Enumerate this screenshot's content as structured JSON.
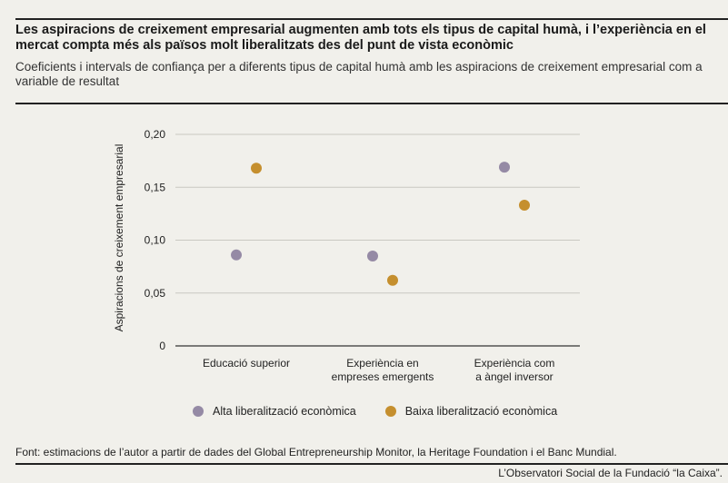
{
  "header": {
    "title": "Les aspiracions de creixement empresarial augmenten amb tots els tipus de capital humà, i l’experiència en el mercat compta més als països molt liberalitzats des del punt de vista econòmic",
    "subtitle": "Coeficients i intervals de confiança per a diferents tipus de capital humà amb les aspiracions de creixement empresarial com a variable de resultat"
  },
  "footer": {
    "source": "Font: estimacions de l’autor a partir de dades del Global Entrepreneurship Monitor, la Heritage Foundation i el Banc Mundial.",
    "credit": "L’Observatori Social de la Fundació “la Caixa”."
  },
  "chart_data": {
    "type": "scatter",
    "title": "",
    "xlabel": "",
    "ylabel": "Aspiracions de creixement empresarial",
    "ylim": [
      0,
      0.2
    ],
    "yticks": [
      0,
      0.05,
      0.1,
      0.15,
      0.2
    ],
    "ytick_labels": [
      "0",
      "0,05",
      "0,10",
      "0,15",
      "0,20"
    ],
    "grid": true,
    "legend_position": "bottom",
    "categories": [
      [
        "Educació superior"
      ],
      [
        "Experiència en",
        "empreses emergents"
      ],
      [
        "Experiència com",
        "a àngel inversor"
      ]
    ],
    "series": [
      {
        "name": "Alta liberalització econòmica",
        "color": "#958aa5",
        "values": [
          0.086,
          0.085,
          0.169
        ]
      },
      {
        "name": "Baixa liberalització econòmica",
        "color": "#c58f2e",
        "values": [
          0.168,
          0.062,
          0.133
        ]
      }
    ]
  }
}
